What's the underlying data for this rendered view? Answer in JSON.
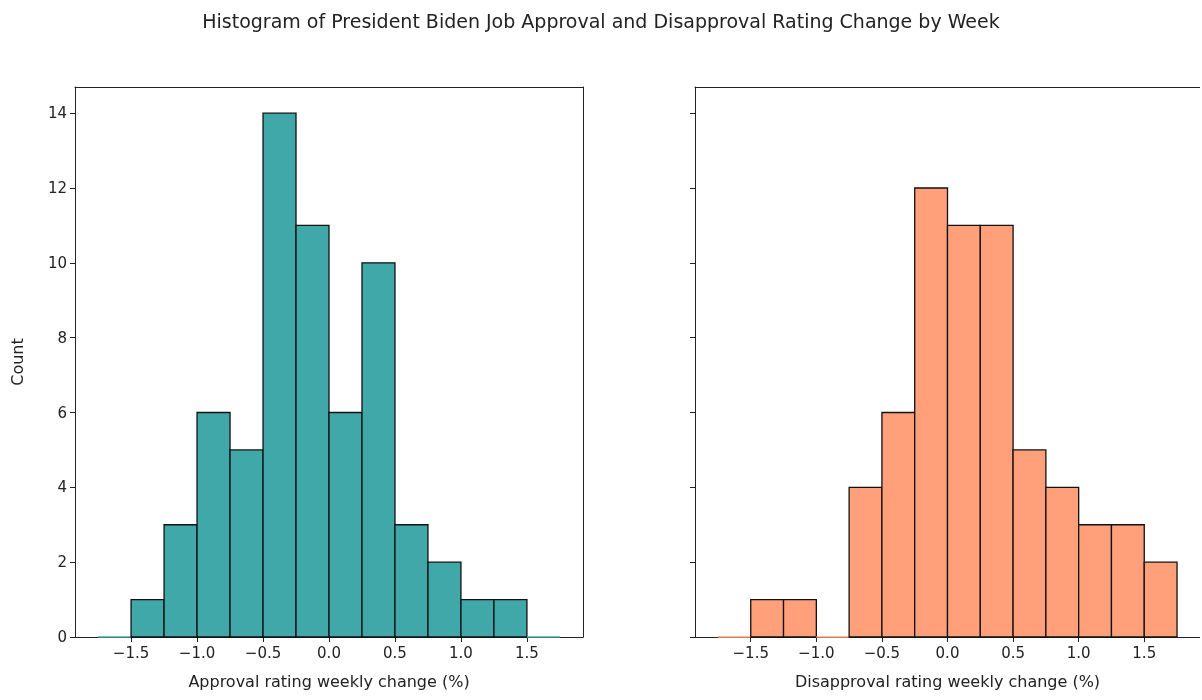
{
  "chart_data": [
    {
      "type": "histogram",
      "title": "Histogram of President Biden Job Approval and Disapproval Rating Change by Week",
      "xlabel": "Approval rating weekly change (%)",
      "ylabel": "Count",
      "color": "#40a8a8",
      "bins": [
        -1.75,
        -1.5,
        -1.25,
        -1.0,
        -0.75,
        -0.5,
        -0.25,
        0.0,
        0.25,
        0.5,
        0.75,
        1.0,
        1.25,
        1.5,
        1.75
      ],
      "values": [
        0,
        1,
        3,
        6,
        5,
        14,
        11,
        6,
        10,
        3,
        2,
        1,
        1,
        0
      ],
      "xlim": [
        -1.925,
        1.925
      ],
      "xticks": [
        {
          "value": -1.5,
          "label": "−1.5"
        },
        {
          "value": -1.0,
          "label": "−1.0"
        },
        {
          "value": -0.5,
          "label": "−0.5"
        },
        {
          "value": 0.0,
          "label": "0.0"
        },
        {
          "value": 0.5,
          "label": "0.5"
        },
        {
          "value": 1.0,
          "label": "1.0"
        },
        {
          "value": 1.5,
          "label": "1.5"
        }
      ],
      "ylim": [
        0,
        14.7
      ],
      "yticks": [
        0,
        2,
        4,
        6,
        8,
        10,
        12,
        14
      ]
    },
    {
      "type": "histogram",
      "xlabel": "Disapproval rating weekly change (%)",
      "color": "#ffa07a",
      "bins": [
        -1.75,
        -1.5,
        -1.25,
        -1.0,
        -0.75,
        -0.5,
        -0.25,
        0.0,
        0.25,
        0.5,
        0.75,
        1.0,
        1.25,
        1.5,
        1.75
      ],
      "values": [
        0,
        1,
        1,
        0,
        4,
        6,
        12,
        11,
        11,
        5,
        4,
        3,
        3,
        2
      ],
      "xlim": [
        -1.925,
        1.925
      ],
      "xticks": [
        {
          "value": -1.5,
          "label": "−1.5"
        },
        {
          "value": -1.0,
          "label": "−1.0"
        },
        {
          "value": -0.5,
          "label": "−0.5"
        },
        {
          "value": 0.0,
          "label": "0.0"
        },
        {
          "value": 0.5,
          "label": "0.5"
        },
        {
          "value": 1.0,
          "label": "1.0"
        },
        {
          "value": 1.5,
          "label": "1.5"
        }
      ],
      "ylim": [
        0,
        14.7
      ],
      "yticks": [
        0,
        2,
        4,
        6,
        8,
        10,
        12,
        14
      ],
      "tick_labels": "x"
    }
  ]
}
